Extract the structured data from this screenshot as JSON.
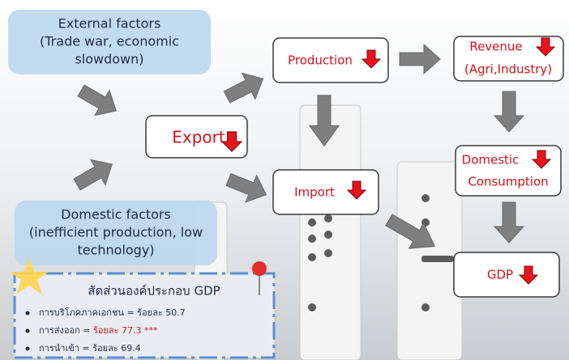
{
  "external": {
    "lines": [
      "External factors",
      "(Trade war, economic",
      "slowdown)"
    ]
  },
  "domestic": {
    "lines": [
      "Domestic factors",
      "(inefficient production, low",
      "technology)"
    ]
  },
  "nodes": [
    {
      "lines": [
        "Export"
      ]
    },
    {
      "lines": [
        "Production"
      ]
    },
    {
      "lines": [
        "Revenue",
        "(Agri,Industry)"
      ]
    },
    {
      "lines": [
        "Import"
      ]
    },
    {
      "lines": [
        "Domestic",
        "Consumption"
      ]
    },
    {
      "lines": [
        "GDP"
      ]
    }
  ],
  "info": {
    "title": "สัดส่วนองค์ประกอบ GDP",
    "items": [
      [
        "การบริโภคภาคเอกชน = ร้อยละ 50.7"
      ],
      [
        "การส่งออก = ",
        "ร้อยละ 77.3 ***"
      ],
      [
        "การนำเข้า = ร้อยละ 69.4"
      ]
    ]
  }
}
